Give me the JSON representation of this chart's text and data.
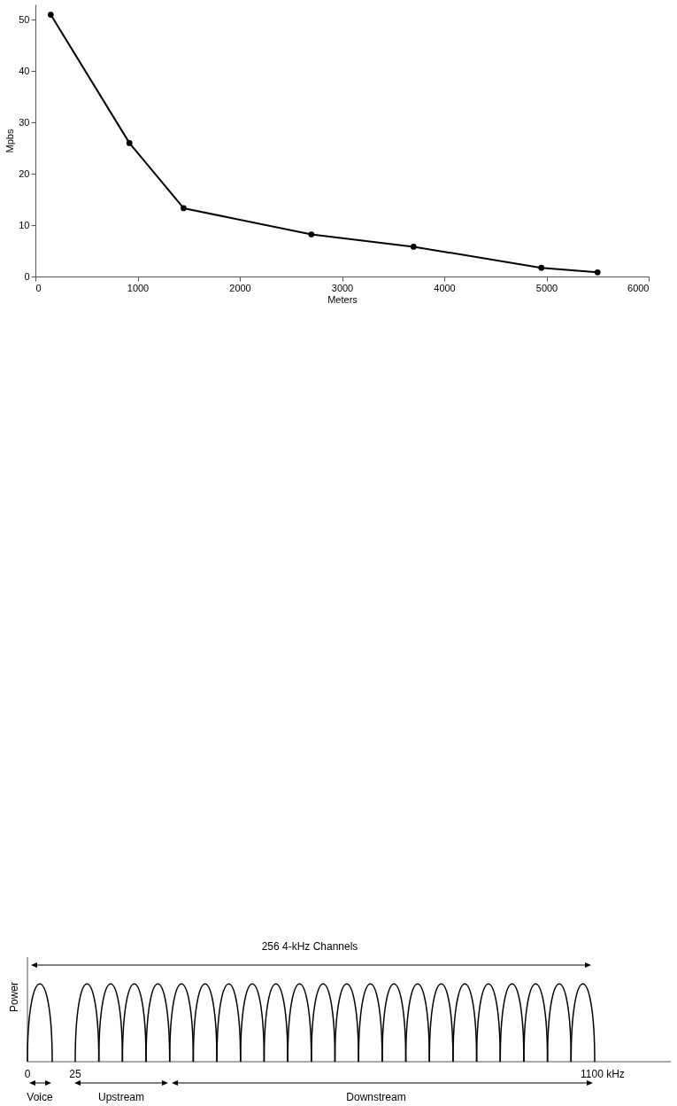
{
  "chart_data": [
    {
      "type": "line",
      "xlabel": "Meters",
      "ylabel": "Mpbs",
      "x": [
        150,
        920,
        1450,
        2700,
        3700,
        4950,
        5500
      ],
      "series": [
        {
          "color": "#000000",
          "values": [
            51,
            26,
            13.3,
            8.2,
            5.8,
            1.7,
            0.8
          ]
        }
      ],
      "xlim": [
        0,
        6000
      ],
      "xticks": [
        0,
        1000,
        2000,
        3000,
        4000,
        5000,
        6000
      ],
      "ylim": [
        0,
        53
      ],
      "yticks": [
        0,
        10,
        20,
        30,
        40,
        50
      ],
      "grid": false,
      "marker": "circle",
      "line_style": "solid"
    },
    {
      "type": "other",
      "ylabel": "Power",
      "annotations": [
        "256 4-kHz Channels",
        "0",
        "25",
        "1100 kHz",
        "Voice",
        "Upstream",
        "Downstream"
      ]
    }
  ]
}
